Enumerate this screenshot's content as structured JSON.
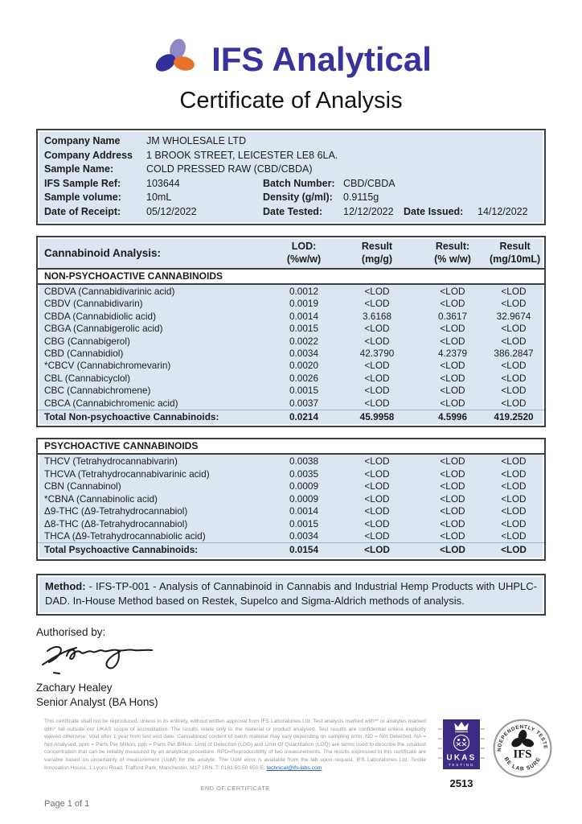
{
  "brand": {
    "name": "IFS Analytical"
  },
  "title": "Certificate of Analysis",
  "info": {
    "rows": [
      [
        {
          "label": "Company Name",
          "value": "JM WHOLESALE LTD"
        }
      ],
      [
        {
          "label": "Company Address",
          "value": "1 BROOK STREET, LEICESTER LE8 6LA."
        }
      ],
      [
        {
          "label": "Sample Name:",
          "value": "COLD PRESSED RAW (CBD/CBDA)"
        }
      ],
      [
        {
          "label": "IFS Sample Ref:",
          "value": "103644"
        },
        {
          "label": "Batch Number:",
          "value": "CBD/CBDA"
        }
      ],
      [
        {
          "label": "Sample volume:",
          "value": "10mL"
        },
        {
          "label": "Density (g/ml):",
          "value": "0.9115g"
        }
      ],
      [
        {
          "label": "Date of Receipt:",
          "value": "05/12/2022"
        },
        {
          "label": "Date Tested:",
          "value": "12/12/2022"
        },
        {
          "label": "Date Issued:",
          "value": "14/12/2022"
        }
      ]
    ]
  },
  "analysis": {
    "title": "Cannabinoid Analysis:",
    "columns": [
      [
        "LOD:",
        "(%w/w)"
      ],
      [
        "Result",
        "(mg/g)"
      ],
      [
        "Result:",
        "(% w/w)"
      ],
      [
        "Result",
        "(mg/10mL)"
      ]
    ],
    "sections": [
      {
        "header": "NON-PSYCHOACTIVE CANNABINOIDS",
        "rows": [
          [
            "CBDVA (Cannabidivarinic acid)",
            "0.0012",
            "<LOD",
            "<LOD",
            "<LOD"
          ],
          [
            "CBDV (Cannabidivarin)",
            "0.0019",
            "<LOD",
            "<LOD",
            "<LOD"
          ],
          [
            "CBDA (Cannabidiolic acid)",
            "0.0014",
            "3.6168",
            "0.3617",
            "32.9674"
          ],
          [
            "CBGA (Cannabigerolic acid)",
            "0.0015",
            "<LOD",
            "<LOD",
            "<LOD"
          ],
          [
            "CBG (Cannabigerol)",
            "0.0022",
            "<LOD",
            "<LOD",
            "<LOD"
          ],
          [
            "CBD (Cannabidiol)",
            "0.0034",
            "42.3790",
            "4.2379",
            "386.2847"
          ],
          [
            "*CBCV (Cannabichromevarin)",
            "0.0020",
            "<LOD",
            "<LOD",
            "<LOD"
          ],
          [
            "CBL (Cannabicyclol)",
            "0.0026",
            "<LOD",
            "<LOD",
            "<LOD"
          ],
          [
            "CBC (Cannabichromene)",
            "0.0015",
            "<LOD",
            "<LOD",
            "<LOD"
          ],
          [
            "CBCA (Cannabichromenic acid)",
            "0.0037",
            "<LOD",
            "<LOD",
            "<LOD"
          ]
        ],
        "total": [
          "Total Non-psychoactive Cannabinoids:",
          "0.0214",
          "45.9958",
          "4.5996",
          "419.2520"
        ]
      },
      {
        "header": "PSYCHOACTIVE CANNABINOIDS",
        "rows": [
          [
            "THCV (Tetrahydrocannabivarin)",
            "0.0038",
            "<LOD",
            "<LOD",
            "<LOD"
          ],
          [
            "THCVA (Tetrahydrocannabivarinic acid)",
            "0.0035",
            "<LOD",
            "<LOD",
            "<LOD"
          ],
          [
            "CBN (Cannabinol)",
            "0.0009",
            "<LOD",
            "<LOD",
            "<LOD"
          ],
          [
            "*CBNA (Cannabinolic acid)",
            "0.0009",
            "<LOD",
            "<LOD",
            "<LOD"
          ],
          [
            "Δ9-THC (Δ9-Tetrahydrocannabiol)",
            "0.0014",
            "<LOD",
            "<LOD",
            "<LOD"
          ],
          [
            "Δ8-THC (Δ8-Tetrahydrocannabiol)",
            "0.0015",
            "<LOD",
            "<LOD",
            "<LOD"
          ],
          [
            "THCA (Δ9-Tetrahydrocannabiolic acid)",
            "0.0034",
            "<LOD",
            "<LOD",
            "<LOD"
          ]
        ],
        "total": [
          "Total Psychoactive Cannabinoids:",
          "0.0154",
          "<LOD",
          "<LOD",
          "<LOD"
        ]
      }
    ]
  },
  "method": {
    "label": "Method:",
    "text": " - IFS-TP-001 - Analysis of Cannabinoid in Cannabis and Industrial Hemp Products with UHPLC-DAD. In-House Method based on Restek, Supelco and Sigma-Aldrich methods of analysis."
  },
  "authorisation": {
    "label": "Authorised by:",
    "name": "Zachary Healey",
    "role": "Senior Analyst (BA Hons)"
  },
  "footer": {
    "disclaimer": "This certificate shall not be reproduced, unless in its entirety, without written approval from IFS Laboratories Ltd. Test analysis marked with** or analytes marked with* fall outside our UKAS scope of accreditation.  The results relate only to the material or product analysed. Test results are confidential unless explicitly waived otherwise. Void after 1 year from test end date. Cannabinoid content of batch material may vary depending on sampling error. ND = Not Detected, NA = Not Analysed, ppm = Parts Per Million, ppb = Parts Per Billion. Limit of Detection (LOD) and Limit Of Quantitation (LOQ) are terms used to describe the smallest concentration that can be reliably measured by an analytical procedure. RPD=Reproducibility of two measurements. The results expressed in this certificate are variable based on uncertainty of measurement (UoM) for the analyte. The UoM error is available from the lab upon request. IFS Laboratories Ltd. Textile Innovation House, 1 Lyons Road, Trafford Park, Manchester, M17 1RN. T: 0161 50 50 650 E: ",
    "email": "technical@ifs-labs.com",
    "end_label": "END OF CERTIFICATE",
    "page_label": "Page 1 of 1"
  },
  "ukas": {
    "name": "UKAS",
    "subtitle": "TESTING",
    "number": "2513"
  },
  "seal": {
    "top": "INDEPENDENTLY TESTED",
    "bottom": "BE LAB SURE",
    "center": "IFS"
  },
  "colors": {
    "brand_blue": "#37339a",
    "logo_lavender": "#8f8ac7",
    "logo_navy": "#34309b",
    "logo_orange": "#e8712c",
    "table_blue": "#dce6f1",
    "ukas_purple": "#3d2a82"
  }
}
